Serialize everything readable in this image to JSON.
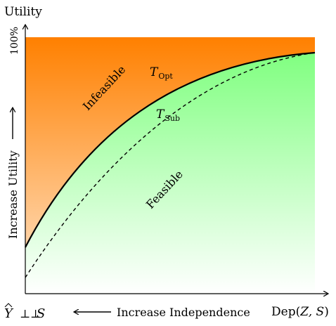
{
  "axes": {
    "y_title": "Utility",
    "y_top_tick": "100%",
    "y_side_label": "Increase Utility",
    "x_right_label_prefix": "Dep(",
    "x_right_label_vars": "Z, S",
    "x_right_label_suffix": ")",
    "x_bottom_label": "Increase Independence",
    "origin_hat_var": "Y",
    "origin_relation": "⊥⊥",
    "origin_var": "S"
  },
  "regions": {
    "infeasible_label": "Infeasible",
    "feasible_label": "Feasible"
  },
  "curves": {
    "opt_symbol": "T",
    "opt_subscript": "Opt",
    "sub_symbol": "T",
    "sub_subscript": "Sub"
  },
  "colors": {
    "infeasible_top": "#ff8000",
    "infeasible_bottom": "#ffe6cc",
    "feasible_top": "#80ff80",
    "feasible_bottom": "#ffffff",
    "curve": "#000000"
  }
}
